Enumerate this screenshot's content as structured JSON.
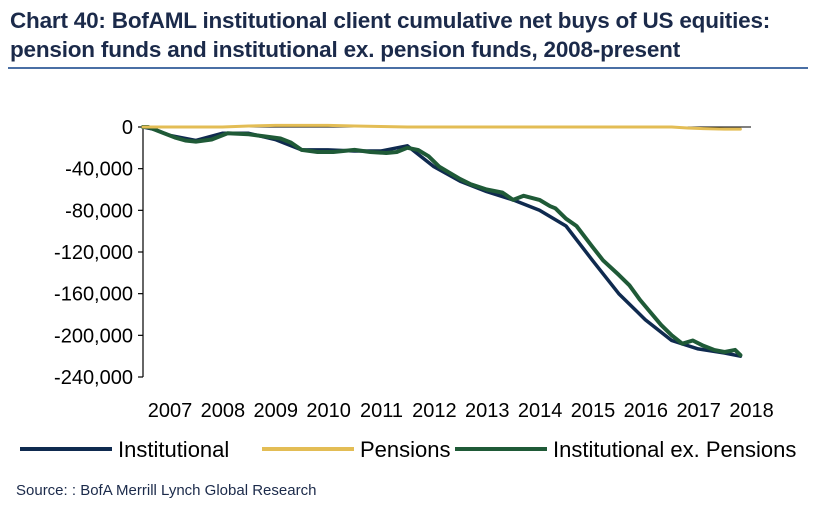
{
  "title": "Chart 40: BofAML institutional client cumulative net buys of US equities:\npension funds and institutional ex. pension funds, 2008-present",
  "source": "Source:  : BofA Merrill Lynch Global Research",
  "chart_data": {
    "type": "line",
    "title": "Chart 40: BofAML institutional client cumulative net buys of US equities: pension funds and institutional ex. pension funds, 2008-present",
    "xlabel": "",
    "ylabel": "",
    "xlim": [
      2007,
      2018.5
    ],
    "ylim": [
      -240000,
      0
    ],
    "x_ticks": [
      2007,
      2008,
      2009,
      2010,
      2011,
      2012,
      2013,
      2014,
      2015,
      2016,
      2017,
      2018
    ],
    "x_tick_labels": [
      "2007",
      "2008",
      "2009",
      "2010",
      "2011",
      "2012",
      "2013",
      "2014",
      "2015",
      "2016",
      "2017",
      "2018"
    ],
    "y_ticks": [
      0,
      -40000,
      -80000,
      -120000,
      -160000,
      -200000,
      -240000
    ],
    "y_tick_labels": [
      "0",
      "-40,000",
      "-80,000",
      "-120,000",
      "-160,000",
      "-200,000",
      "-240,000"
    ],
    "legend": "bottom",
    "series": [
      {
        "name": "Institutional",
        "color": "#0f2a4f",
        "x": [
          2007.0,
          2007.2,
          2007.5,
          2008.0,
          2008.5,
          2009.0,
          2009.5,
          2010.0,
          2010.5,
          2011.0,
          2011.5,
          2012.0,
          2012.5,
          2013.0,
          2013.5,
          2014.0,
          2014.5,
          2015.0,
          2015.5,
          2016.0,
          2016.5,
          2017.0,
          2017.5,
          2018.0,
          2018.3
        ],
        "values": [
          0,
          -2000,
          -8000,
          -13000,
          -6000,
          -6000,
          -12000,
          -22000,
          -22000,
          -23000,
          -23000,
          -18000,
          -38000,
          -52000,
          -62000,
          -70000,
          -80000,
          -95000,
          -128000,
          -160000,
          -185000,
          -205000,
          -213000,
          -217000,
          -220000
        ]
      },
      {
        "name": "Pensions",
        "color": "#e3bd55",
        "x": [
          2007.0,
          2007.5,
          2008.0,
          2008.5,
          2009.0,
          2009.5,
          2010.0,
          2010.5,
          2011.0,
          2011.5,
          2012.0,
          2013.0,
          2014.0,
          2015.0,
          2016.0,
          2017.0,
          2017.3,
          2017.6,
          2018.0,
          2018.3
        ],
        "values": [
          0,
          0,
          0,
          0,
          1000,
          1500,
          1500,
          1500,
          1000,
          500,
          0,
          0,
          0,
          0,
          0,
          0,
          -1000,
          -1500,
          -2000,
          -2000
        ]
      },
      {
        "name": "Institutional ex. Pensions",
        "color": "#1f5a37",
        "x": [
          2007.0,
          2007.1,
          2007.2,
          2007.4,
          2007.6,
          2007.8,
          2008.0,
          2008.3,
          2008.6,
          2009.0,
          2009.3,
          2009.6,
          2009.8,
          2010.0,
          2010.3,
          2010.6,
          2011.0,
          2011.3,
          2011.6,
          2011.8,
          2012.0,
          2012.2,
          2012.4,
          2012.6,
          2012.8,
          2013.0,
          2013.2,
          2013.5,
          2013.8,
          2014.0,
          2014.2,
          2014.5,
          2014.7,
          2014.8,
          2015.0,
          2015.2,
          2015.5,
          2015.7,
          2016.0,
          2016.2,
          2016.4,
          2016.6,
          2016.8,
          2017.0,
          2017.2,
          2017.4,
          2017.6,
          2017.8,
          2018.0,
          2018.2,
          2018.3
        ],
        "values": [
          0,
          0,
          -2000,
          -6000,
          -10000,
          -13000,
          -14000,
          -12000,
          -6000,
          -7000,
          -9000,
          -11000,
          -15000,
          -22000,
          -24000,
          -24000,
          -22000,
          -24000,
          -25000,
          -24000,
          -20000,
          -22000,
          -28000,
          -38000,
          -44000,
          -50000,
          -55000,
          -60000,
          -63000,
          -70000,
          -66000,
          -70000,
          -76000,
          -78000,
          -88000,
          -95000,
          -115000,
          -128000,
          -142000,
          -152000,
          -166000,
          -178000,
          -190000,
          -200000,
          -208000,
          -205000,
          -210000,
          -214000,
          -216000,
          -214000,
          -219000
        ]
      }
    ]
  }
}
